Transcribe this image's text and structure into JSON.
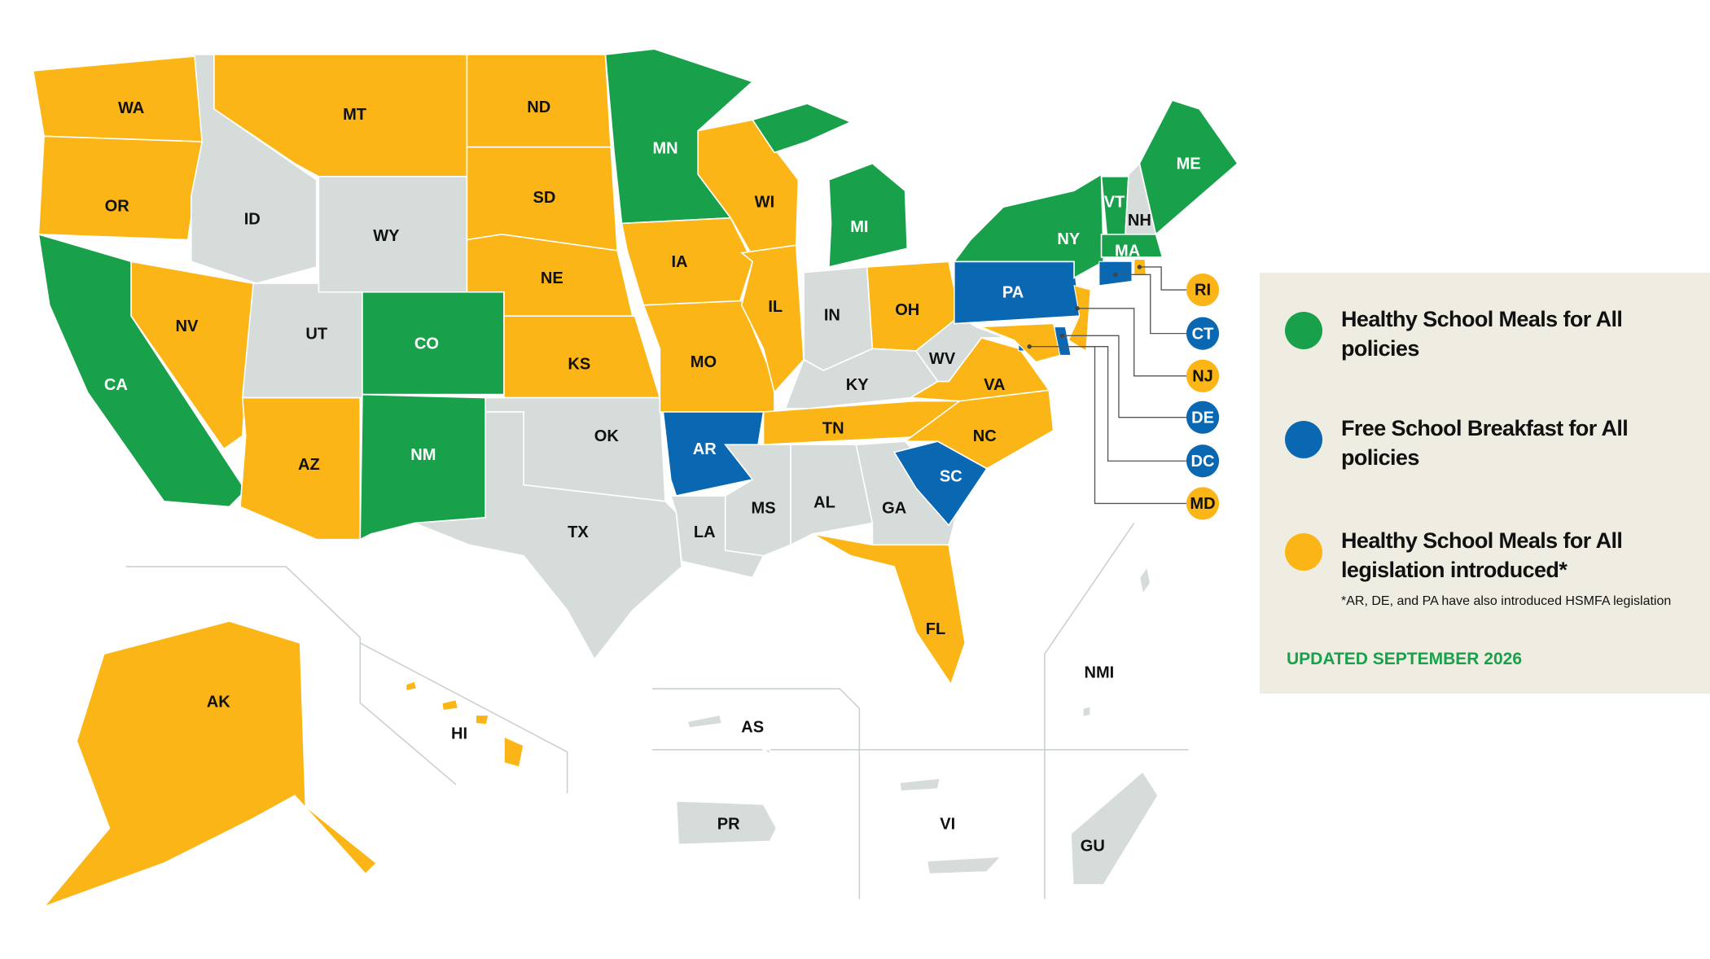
{
  "areas": [
    {
      "abbr": "WA",
      "color": "#fbb516"
    },
    {
      "abbr": "OR",
      "color": "#fbb516"
    },
    {
      "abbr": "CA",
      "color": "#18a14a"
    },
    {
      "abbr": "NV",
      "color": "#fbb516"
    },
    {
      "abbr": "ID",
      "color": "#d5dcd9"
    },
    {
      "abbr": "MT",
      "color": "#fbb516"
    },
    {
      "abbr": "WY",
      "color": "#d5dcd9"
    },
    {
      "abbr": "UT",
      "color": "#d5dcd9"
    },
    {
      "abbr": "AZ",
      "color": "#fbb516"
    },
    {
      "abbr": "CO",
      "color": "#18a14a"
    },
    {
      "abbr": "NM",
      "color": "#18a14a"
    },
    {
      "abbr": "ND",
      "color": "#fbb516"
    },
    {
      "abbr": "SD",
      "color": "#fbb516"
    },
    {
      "abbr": "NE",
      "color": "#fbb516"
    },
    {
      "abbr": "KS",
      "color": "#fbb516"
    },
    {
      "abbr": "OK",
      "color": "#d5dcd9"
    },
    {
      "abbr": "TX",
      "color": "#d5dcd9"
    },
    {
      "abbr": "MN",
      "color": "#18a14a"
    },
    {
      "abbr": "IA",
      "color": "#fbb516"
    },
    {
      "abbr": "MO",
      "color": "#fbb516"
    },
    {
      "abbr": "AR",
      "color": "#0a67b1"
    },
    {
      "abbr": "LA",
      "color": "#d5dcd9"
    },
    {
      "abbr": "WI",
      "color": "#fbb516"
    },
    {
      "abbr": "IL",
      "color": "#fbb516"
    },
    {
      "abbr": "MI",
      "color": "#18a14a"
    },
    {
      "abbr": "IN",
      "color": "#d5dcd9"
    },
    {
      "abbr": "OH",
      "color": "#fbb516"
    },
    {
      "abbr": "KY",
      "color": "#d5dcd9"
    },
    {
      "abbr": "TN",
      "color": "#fbb516"
    },
    {
      "abbr": "MS",
      "color": "#d5dcd9"
    },
    {
      "abbr": "AL",
      "color": "#d5dcd9"
    },
    {
      "abbr": "GA",
      "color": "#d5dcd9"
    },
    {
      "abbr": "FL",
      "color": "#fbb516"
    },
    {
      "abbr": "SC",
      "color": "#0a67b1"
    },
    {
      "abbr": "NC",
      "color": "#fbb516"
    },
    {
      "abbr": "VA",
      "color": "#fbb516"
    },
    {
      "abbr": "WV",
      "color": "#d5dcd9"
    },
    {
      "abbr": "PA",
      "color": "#0a67b1"
    },
    {
      "abbr": "NY",
      "color": "#18a14a"
    },
    {
      "abbr": "VT",
      "color": "#18a14a"
    },
    {
      "abbr": "NH",
      "color": "#d5dcd9"
    },
    {
      "abbr": "ME",
      "color": "#18a14a"
    },
    {
      "abbr": "MA",
      "color": "#18a14a"
    },
    {
      "abbr": "AK",
      "color": "#fbb516"
    },
    {
      "abbr": "HI",
      "color": "#fbb516"
    },
    {
      "abbr": "NMI",
      "color": "#d5dcd9"
    },
    {
      "abbr": "AS",
      "color": "#d5dcd9"
    },
    {
      "abbr": "PR",
      "color": "#d5dcd9"
    },
    {
      "abbr": "VI",
      "color": "#d5dcd9"
    },
    {
      "abbr": "GU",
      "color": "#d5dcd9"
    }
  ],
  "callouts": [
    {
      "abbr": "RI",
      "color": "#fbb516"
    },
    {
      "abbr": "CT",
      "color": "#0a67b1"
    },
    {
      "abbr": "NJ",
      "color": "#fbb516"
    },
    {
      "abbr": "DE",
      "color": "#0a67b1"
    },
    {
      "abbr": "DC",
      "color": "#0a67b1"
    },
    {
      "abbr": "MD",
      "color": "#fbb516"
    }
  ],
  "legend": {
    "items": [
      {
        "lines": [
          "Healthy School Meals for All",
          "policies"
        ],
        "color": "#18a14a"
      },
      {
        "lines": [
          "Free School Breakfast for All",
          "policies"
        ],
        "color": "#0a67b1"
      },
      {
        "lines": [
          "Healthy School Meals for All",
          "legislation introduced*"
        ],
        "color": "#fbb516"
      }
    ],
    "footnote": "*AR, DE, and PA have also introduced HSMFA legislation",
    "updated": "UPDATED SEPTEMBER 2026"
  }
}
